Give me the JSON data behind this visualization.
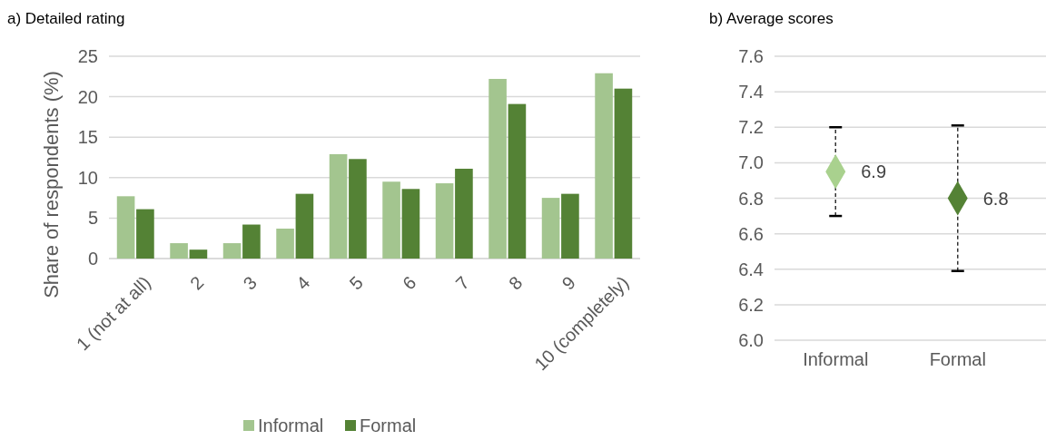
{
  "chart_data": [
    {
      "type": "bar",
      "title": "a) Detailed rating",
      "ylabel": "Share of respondents (%)",
      "categories": [
        "1 (not at all)",
        "2",
        "3",
        "4",
        "5",
        "6",
        "7",
        "8",
        "9",
        "10 (completely)"
      ],
      "series": [
        {
          "name": "Informal",
          "color": "#a3c58f",
          "values": [
            7.7,
            1.9,
            1.9,
            3.7,
            12.9,
            9.5,
            9.3,
            22.2,
            7.5,
            22.9
          ]
        },
        {
          "name": "Formal",
          "color": "#548235",
          "values": [
            6.1,
            1.1,
            4.2,
            8.0,
            12.3,
            8.6,
            11.1,
            19.1,
            8.0,
            21.0
          ]
        }
      ],
      "ylim": [
        0,
        25
      ],
      "yticks": [
        0,
        5,
        10,
        15,
        20,
        25
      ],
      "grid": "y",
      "legend": "bottom"
    },
    {
      "type": "scatter",
      "title": "b) Average scores",
      "categories": [
        "Informal",
        "Formal"
      ],
      "values": [
        6.95,
        6.8
      ],
      "colors": [
        "#a9d18e",
        "#548235"
      ],
      "errors": [
        [
          6.7,
          7.2
        ],
        [
          6.39,
          7.21
        ]
      ],
      "value_labels": [
        "6.9",
        "6.8"
      ],
      "marker": "diamond",
      "ylim": [
        6,
        7.6
      ],
      "yticks": [
        {
          "value": 6,
          "label": "6.0"
        },
        {
          "value": 6.2,
          "label": "6.2"
        },
        {
          "value": 6.4,
          "label": "6.4"
        },
        {
          "value": 6.6,
          "label": "6.6"
        },
        {
          "value": 6.8,
          "label": "6.8"
        },
        {
          "value": 7,
          "label": "7.0"
        },
        {
          "value": 7.2,
          "label": "7.2"
        },
        {
          "value": 7.4,
          "label": "7.4"
        },
        {
          "value": 7.6,
          "label": "7.6"
        }
      ],
      "grid": "y"
    }
  ]
}
